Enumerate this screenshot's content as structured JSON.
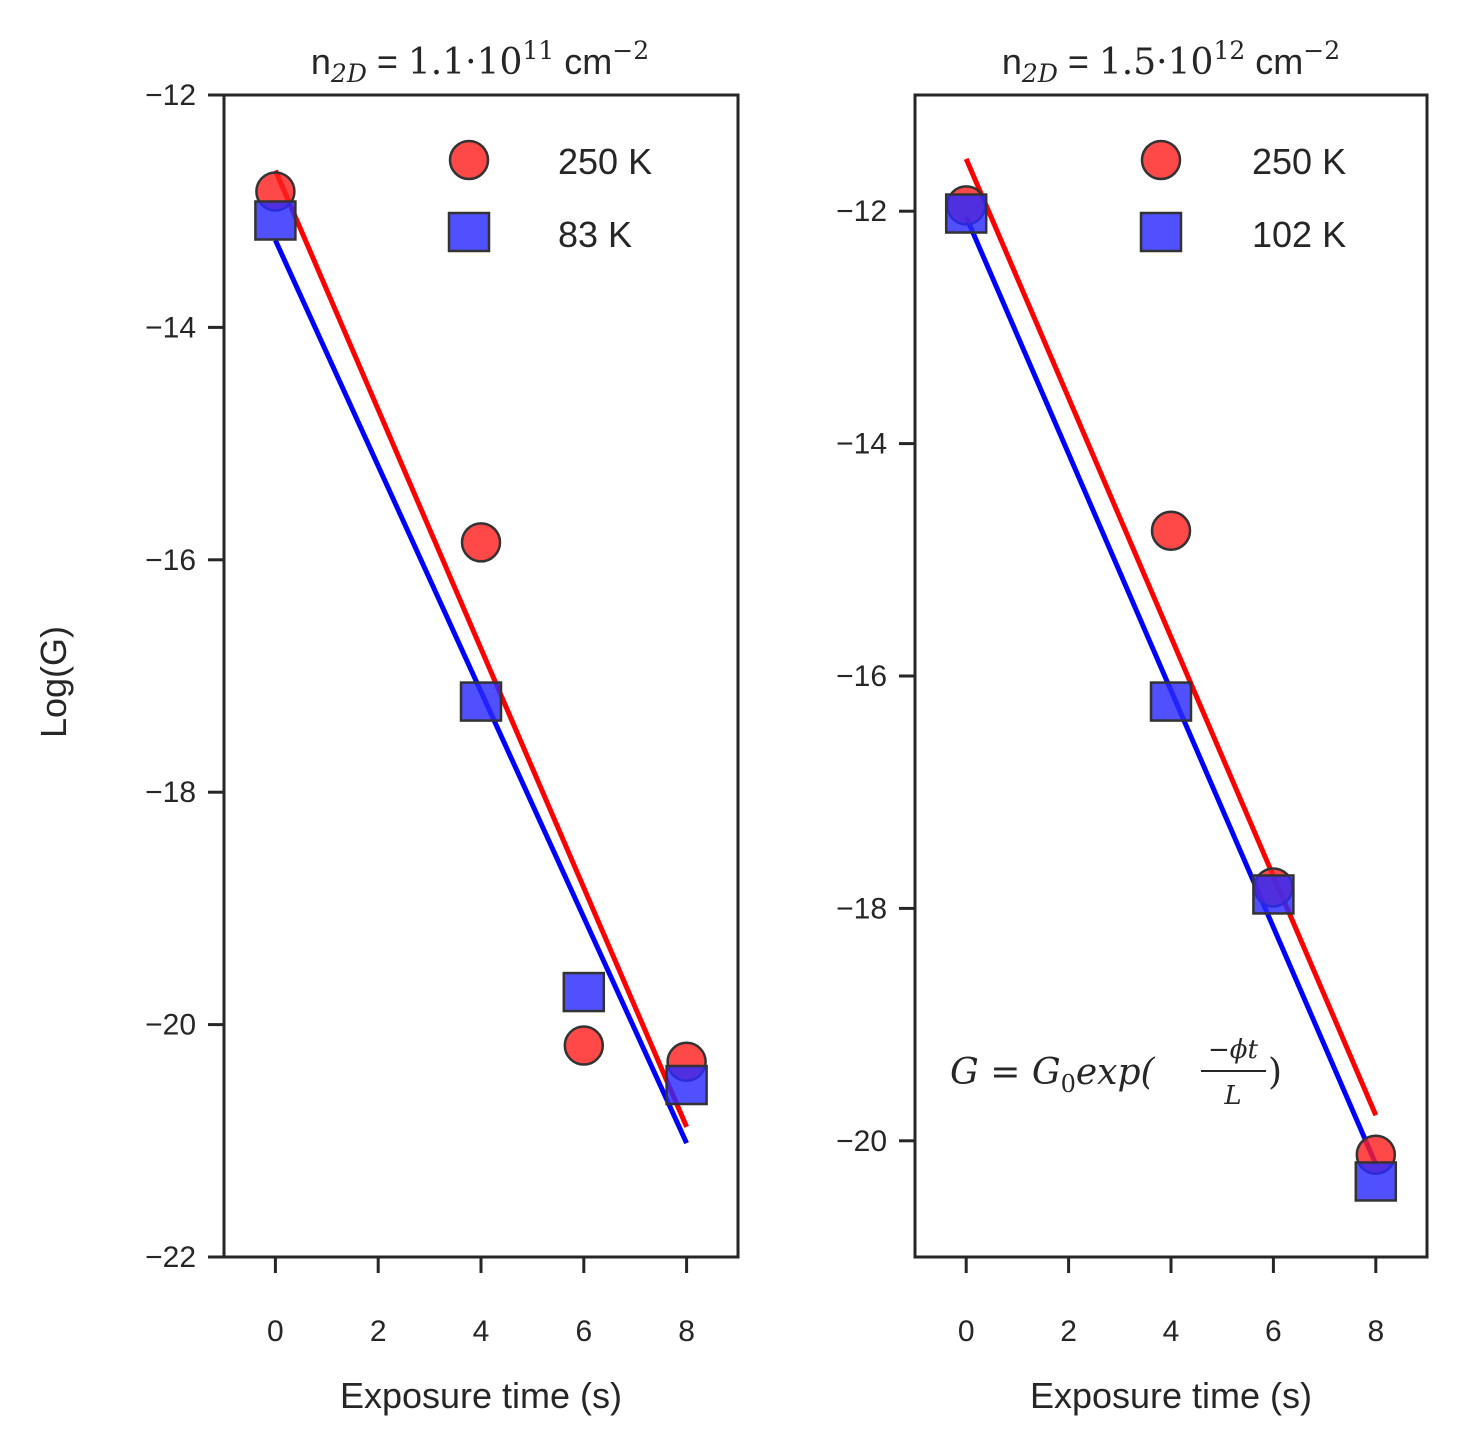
{
  "figure": {
    "ylabel": "Log(G)"
  },
  "chart_data": [
    {
      "type": "scatter",
      "title": {
        "prefix": "n",
        "sub": "2D",
        "eq": " = ",
        "mantissa": "1.1",
        "dot": "·",
        "base": "10",
        "exp": "11",
        "unit": " cm",
        "unit_exp": "−2"
      },
      "xlabel": "Exposure time (s)",
      "ylabel": "Log(G)",
      "xlim": [
        -1,
        9
      ],
      "ylim": [
        -22,
        -12
      ],
      "x_ticks": [
        "0",
        "2",
        "4",
        "6",
        "8"
      ],
      "y_ticks": [
        "−12",
        "−14",
        "−16",
        "−18",
        "−20",
        "−22"
      ],
      "x_tick_values": [
        0,
        2,
        4,
        6,
        8
      ],
      "y_tick_values": [
        -12,
        -14,
        -16,
        -18,
        -20,
        -22
      ],
      "grid": false,
      "legend_position": "top-right",
      "series": [
        {
          "name": "250 K",
          "marker": "circle",
          "color": "#ff2020",
          "x": [
            0,
            4,
            6,
            8
          ],
          "y": [
            -12.83,
            -15.85,
            -20.18,
            -20.32
          ],
          "fit": {
            "x": [
              0,
              8
            ],
            "y": [
              -12.65,
              -20.88
            ],
            "color": "#ff0000"
          }
        },
        {
          "name": "83 K",
          "marker": "square",
          "color": "#2a2aff",
          "x": [
            0,
            4,
            6,
            8
          ],
          "y": [
            -13.08,
            -17.22,
            -19.72,
            -20.52
          ],
          "fit": {
            "x": [
              0,
              8
            ],
            "y": [
              -13.25,
              -21.02
            ],
            "color": "#0000ff"
          }
        }
      ]
    },
    {
      "type": "scatter",
      "title": {
        "prefix": "n",
        "sub": "2D",
        "eq": " = ",
        "mantissa": "1.5",
        "dot": "·",
        "base": "10",
        "exp": "12",
        "unit": " cm",
        "unit_exp": "−2"
      },
      "xlabel": "Exposure time (s)",
      "ylabel": "",
      "xlim": [
        -1,
        9
      ],
      "ylim": [
        -21,
        -11
      ],
      "x_ticks": [
        "0",
        "2",
        "4",
        "6",
        "8"
      ],
      "y_ticks": [
        "−12",
        "−14",
        "−16",
        "−18",
        "−20"
      ],
      "x_tick_values": [
        0,
        2,
        4,
        6,
        8
      ],
      "y_tick_values": [
        -12,
        -14,
        -16,
        -18,
        -20
      ],
      "grid": false,
      "legend_position": "top-right",
      "annotation": {
        "lhs": "G",
        "eq": " = ",
        "g": "G",
        "g_sub": "0",
        "fn": "exp(",
        "numerator": "−ϕt",
        "denominator": "L",
        "close": ")"
      },
      "series": [
        {
          "name": "250 K",
          "marker": "circle",
          "color": "#ff2020",
          "x": [
            0,
            4,
            6,
            8
          ],
          "y": [
            -11.95,
            -14.75,
            -17.82,
            -20.12
          ],
          "fit": {
            "x": [
              0,
              8
            ],
            "y": [
              -11.55,
              -19.78
            ],
            "color": "#ff0000"
          }
        },
        {
          "name": "102 K",
          "marker": "square",
          "color": "#2a2aff",
          "x": [
            0,
            4,
            6,
            8
          ],
          "y": [
            -12.02,
            -16.22,
            -17.88,
            -20.35
          ],
          "fit": {
            "x": [
              0,
              8
            ],
            "y": [
              -12.05,
              -20.2
            ],
            "color": "#0000ff"
          }
        }
      ]
    }
  ]
}
